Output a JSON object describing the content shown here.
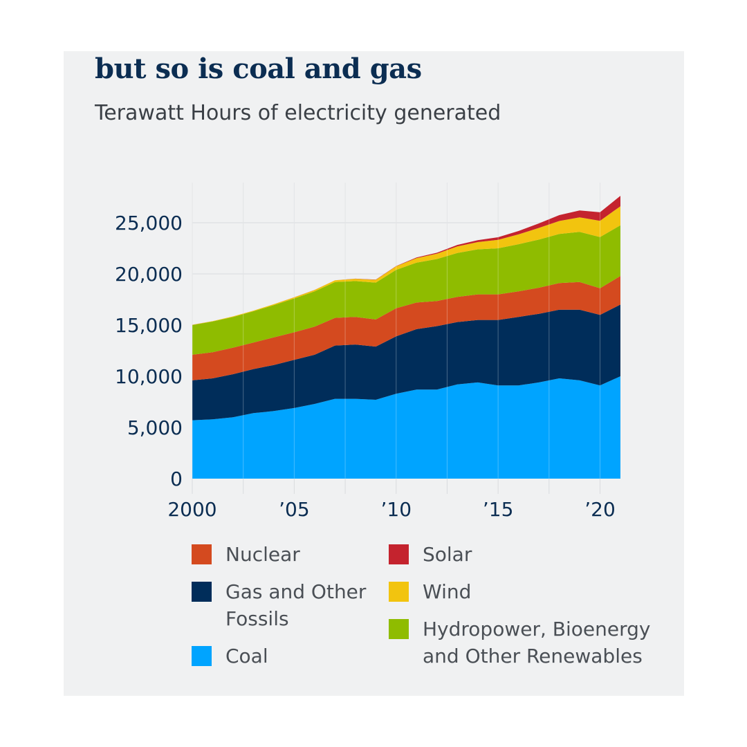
{
  "header": {
    "title": "but so is coal and gas",
    "subtitle": "Terawatt Hours of electricity generated"
  },
  "colors": {
    "background": "#f0f1f2",
    "coal": "#00a4ff",
    "gas": "#002d5a",
    "nuclear": "#d44a1f",
    "hydro": "#8fbc00",
    "wind": "#f2c40f",
    "solar": "#c4232e"
  },
  "chart_data": {
    "type": "area",
    "stacked": true,
    "title": "but so is coal and gas",
    "subtitle": "Terawatt Hours of electricity generated",
    "x": [
      2000,
      2001,
      2002,
      2003,
      2004,
      2005,
      2006,
      2007,
      2008,
      2009,
      2010,
      2011,
      2012,
      2013,
      2014,
      2015,
      2016,
      2017,
      2018,
      2019,
      2020,
      2021
    ],
    "xticks": [
      {
        "value": 2000,
        "label": "2000"
      },
      {
        "value": 2005,
        "label": "’05"
      },
      {
        "value": 2010,
        "label": "’10"
      },
      {
        "value": 2015,
        "label": "’15"
      },
      {
        "value": 2020,
        "label": "’20"
      }
    ],
    "yticks": [
      {
        "value": 0,
        "label": "0"
      },
      {
        "value": 5000,
        "label": "5,000"
      },
      {
        "value": 10000,
        "label": "10,000"
      },
      {
        "value": 15000,
        "label": "15,000"
      },
      {
        "value": 20000,
        "label": "20,000"
      },
      {
        "value": 25000,
        "label": "25,000"
      }
    ],
    "ylim": [
      0,
      29000
    ],
    "grid": true,
    "legend_position": "bottom",
    "series": [
      {
        "name": "Coal",
        "color": "#00a4ff",
        "values": [
          5700,
          5800,
          6000,
          6400,
          6600,
          6900,
          7300,
          7800,
          7800,
          7700,
          8300,
          8700,
          8700,
          9200,
          9400,
          9100,
          9100,
          9400,
          9800,
          9600,
          9100,
          10000
        ]
      },
      {
        "name": "Gas and Other Fossils",
        "color": "#002d5a",
        "values": [
          3900,
          4000,
          4200,
          4300,
          4500,
          4700,
          4800,
          5200,
          5300,
          5200,
          5600,
          5900,
          6200,
          6100,
          6100,
          6400,
          6700,
          6700,
          6700,
          6900,
          6900,
          7000
        ]
      },
      {
        "name": "Nuclear",
        "color": "#d44a1f",
        "values": [
          2500,
          2550,
          2600,
          2600,
          2700,
          2700,
          2750,
          2700,
          2700,
          2650,
          2750,
          2600,
          2450,
          2450,
          2500,
          2500,
          2500,
          2550,
          2600,
          2700,
          2600,
          2800
        ]
      },
      {
        "name": "Hydropower, Bioenergy and Other Renewables",
        "color": "#8fbc00",
        "values": [
          2900,
          3000,
          3000,
          3050,
          3150,
          3300,
          3450,
          3500,
          3500,
          3600,
          3750,
          3900,
          4100,
          4300,
          4400,
          4500,
          4600,
          4700,
          4800,
          4900,
          5000,
          4950
        ]
      },
      {
        "name": "Wind",
        "color": "#f2c40f",
        "values": [
          30,
          40,
          50,
          60,
          90,
          110,
          130,
          170,
          220,
          270,
          340,
          440,
          520,
          640,
          710,
          830,
          960,
          1140,
          1270,
          1420,
          1590,
          1860
        ]
      },
      {
        "name": "Solar",
        "color": "#c4232e",
        "values": [
          1,
          2,
          2,
          3,
          3,
          4,
          6,
          8,
          12,
          20,
          32,
          63,
          100,
          140,
          190,
          250,
          330,
          440,
          570,
          680,
          830,
          1020
        ]
      }
    ],
    "legend": [
      {
        "name": "Nuclear",
        "color": "#d44a1f"
      },
      {
        "name": "Gas and Other Fossils",
        "color": "#002d5a"
      },
      {
        "name": "Coal",
        "color": "#00a4ff"
      },
      {
        "name": "Solar",
        "color": "#c4232e"
      },
      {
        "name": "Wind",
        "color": "#f2c40f"
      },
      {
        "name": "Hydropower, Bioenergy and Other Renewables",
        "color": "#8fbc00"
      }
    ]
  }
}
